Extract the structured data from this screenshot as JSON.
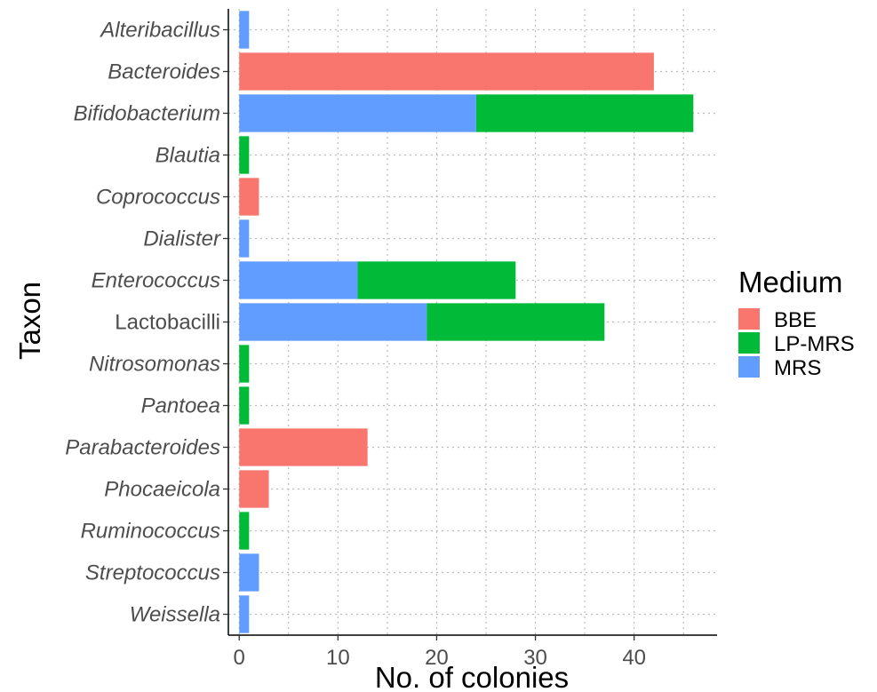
{
  "chart_data": {
    "type": "bar",
    "orientation": "horizontal",
    "stacked": true,
    "title": "",
    "xlabel": "No. of colonies",
    "ylabel": "Taxon",
    "xlim": [
      -1.1,
      48.4
    ],
    "xticks": [
      0,
      10,
      20,
      30,
      40
    ],
    "grid": true,
    "legend_position": "right",
    "legend_title": "Medium",
    "categories": [
      "Alteribacillus",
      "Bacteroides",
      "Bifidobacterium",
      "Blautia",
      "Coprococcus",
      "Dialister",
      "Enterococcus",
      "Lactobacilli",
      "Nitrosomonas",
      "Pantoea",
      "Parabacteroides",
      "Phocaeicola",
      "Ruminococcus",
      "Streptococcus",
      "Weissella"
    ],
    "category_italic": [
      true,
      true,
      true,
      true,
      true,
      true,
      true,
      false,
      true,
      true,
      true,
      true,
      true,
      true,
      true
    ],
    "series": [
      {
        "name": "MRS",
        "color": "#619CFF",
        "values": [
          1,
          0,
          24,
          0,
          0,
          1,
          12,
          19,
          0,
          0,
          0,
          0,
          0,
          2,
          1
        ]
      },
      {
        "name": "LP-MRS",
        "color": "#00BA38",
        "values": [
          0,
          0,
          22,
          1,
          0,
          0,
          16,
          18,
          1,
          1,
          0,
          0,
          1,
          0,
          0
        ]
      },
      {
        "name": "BBE",
        "color": "#F8766D",
        "values": [
          0,
          42,
          0,
          0,
          2,
          0,
          0,
          0,
          0,
          0,
          13,
          3,
          0,
          0,
          0
        ]
      }
    ],
    "legend_order": [
      "BBE",
      "LP-MRS",
      "MRS"
    ]
  }
}
